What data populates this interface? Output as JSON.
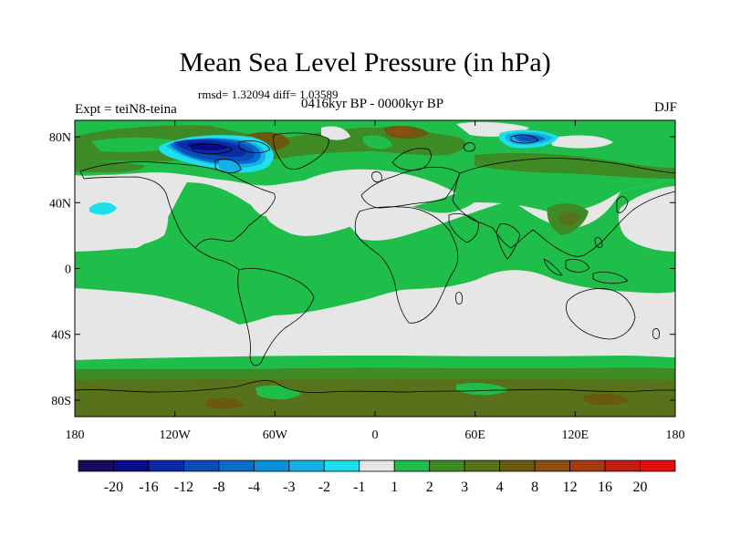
{
  "title": "Mean Sea Level Pressure (in hPa)",
  "stats": "rmsd= 1.32094  diff= 1.03589",
  "experiment": "Expt = teiN8-teina",
  "period": "0416kyr BP - 0000kyr BP",
  "season": "DJF",
  "x_ticks": [
    {
      "label": "180",
      "lon": -180
    },
    {
      "label": "120W",
      "lon": -120
    },
    {
      "label": "60W",
      "lon": -60
    },
    {
      "label": "0",
      "lon": 0
    },
    {
      "label": "60E",
      "lon": 60
    },
    {
      "label": "120E",
      "lon": 120
    },
    {
      "label": "180",
      "lon": 180
    }
  ],
  "y_ticks": [
    {
      "label": "80N",
      "lat": 80
    },
    {
      "label": "40N",
      "lat": 40
    },
    {
      "label": "0",
      "lat": 0
    },
    {
      "label": "40S",
      "lat": -40
    },
    {
      "label": "80S",
      "lat": -80
    }
  ],
  "colorbar": {
    "colors": [
      "#1a0a5e",
      "#0a0a8c",
      "#0c2aa8",
      "#0a4cb8",
      "#0a6cc8",
      "#0a90d8",
      "#17b0e6",
      "#1ee0ec",
      "#e6e6e6",
      "#1fbe4a",
      "#3e8a24",
      "#57721a",
      "#6a5a10",
      "#8a4f10",
      "#a83a12",
      "#c01e10",
      "#e01010"
    ],
    "labels": [
      "-20",
      "-16",
      "-12",
      "-8",
      "-4",
      "-3",
      "-2",
      "-1",
      "1",
      "2",
      "3",
      "4",
      "8",
      "12",
      "16",
      "20"
    ]
  },
  "colors": {
    "neutral": "#e6e6e6",
    "level_2": "#1fbe4a",
    "level_3": "#3e8a24",
    "level_4": "#57721a",
    "level_8": "#6a5a10",
    "level_12": "#8a4f10",
    "neg_2": "#17b0e6",
    "neg_1": "#1ee0ec",
    "neg_8": "#0a4cb8",
    "neg_12": "#0c2aa8",
    "neg_16": "#0a0a8c"
  }
}
